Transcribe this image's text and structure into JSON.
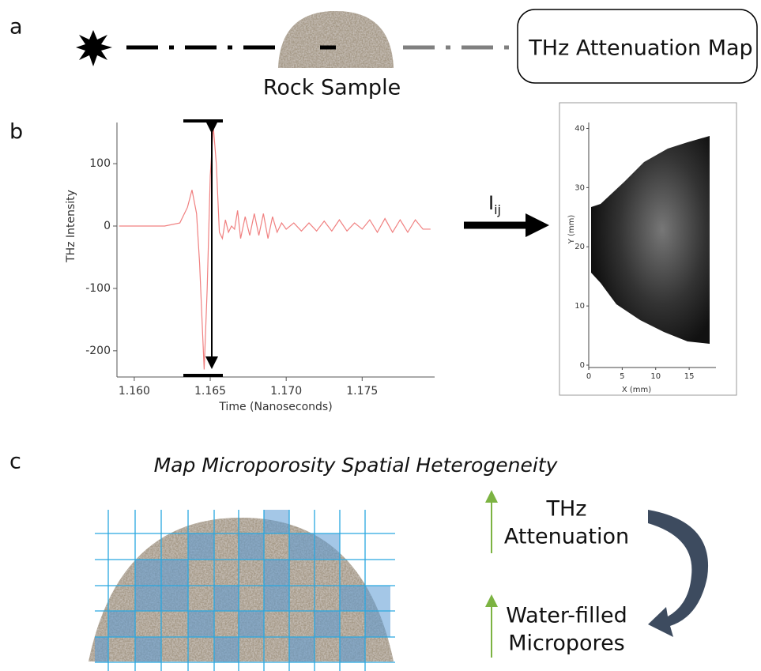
{
  "panel_labels": {
    "a": "a",
    "b": "b",
    "c": "c"
  },
  "panel_a": {
    "sample_label": "Rock Sample",
    "output_label": "THz Attenuation Map"
  },
  "panel_b": {
    "waveform": {
      "type": "line",
      "x_label": "Time (Nanoseconds)",
      "y_label": "THz Intensity",
      "color": "#f08080",
      "x": [
        1.159,
        1.162,
        1.163,
        1.1635,
        1.1638,
        1.1641,
        1.1643,
        1.1646,
        1.1648,
        1.165,
        1.1652,
        1.1654,
        1.1656,
        1.1658,
        1.166,
        1.1662,
        1.1664,
        1.1666,
        1.1668,
        1.167,
        1.1673,
        1.1676,
        1.1679,
        1.1682,
        1.1685,
        1.1688,
        1.1691,
        1.1694,
        1.1697,
        1.17,
        1.1705,
        1.171,
        1.1715,
        1.172,
        1.1725,
        1.173,
        1.1735,
        1.174,
        1.1745,
        1.175,
        1.1755,
        1.176,
        1.1765,
        1.177,
        1.1775,
        1.178,
        1.1785,
        1.179,
        1.1795
      ],
      "values": [
        0,
        0,
        5,
        30,
        58,
        20,
        -60,
        -230,
        -100,
        80,
        160,
        100,
        -10,
        -20,
        10,
        -10,
        0,
        -5,
        25,
        -20,
        15,
        -15,
        20,
        -15,
        20,
        -20,
        15,
        -10,
        5,
        -5,
        5,
        -8,
        5,
        -8,
        8,
        -8,
        10,
        -8,
        5,
        -5,
        10,
        -10,
        12,
        -10,
        10,
        -10,
        10,
        -5,
        -5
      ],
      "xlim": [
        1.15886,
        1.17977
      ],
      "ylim": [
        -242,
        166
      ],
      "xticks": [
        {
          "value": 1.16,
          "label": "1.160"
        },
        1.165,
        {
          "value": 1.17,
          "label": "1.170"
        },
        1.175
      ],
      "yticks": [
        100,
        0,
        -100,
        -200
      ]
    },
    "arrow_label": {
      "main": "I",
      "sub": "ij"
    },
    "map": {
      "x_label": "X (mm)",
      "y_label": "Y (mm)",
      "xlim": [
        0,
        19
      ],
      "ylim": [
        -0.4,
        41
      ],
      "xticks": [
        0,
        5,
        10,
        15
      ],
      "yticks": [
        0,
        10,
        20,
        30,
        40
      ]
    }
  },
  "panel_c": {
    "title": "Map Microporosity Spatial Heterogeneity",
    "attenuation": [
      "THz",
      "Attenuation"
    ],
    "water": [
      "Water-filled",
      "Micropores"
    ]
  }
}
